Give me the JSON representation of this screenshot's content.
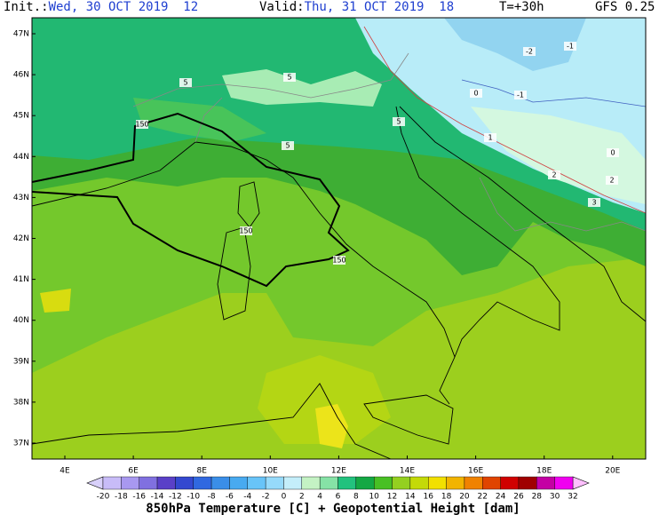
{
  "header": {
    "init_label": "Init.:",
    "init": "Wed, 30 OCT 2019  12",
    "valid_label": "Valid:",
    "valid": "Thu, 31 OCT 2019  18",
    "lead": "T=+30h",
    "model": "GFS 0.25"
  },
  "map": {
    "lat_labels": [
      "47N",
      "46N",
      "45N",
      "44N",
      "43N",
      "42N",
      "41N",
      "40N",
      "39N",
      "38N",
      "37N"
    ],
    "lon_labels": [
      "4E",
      "6E",
      "8E",
      "10E",
      "12E",
      "14E",
      "16E",
      "18E",
      "20E"
    ],
    "contour_labels": [
      "150",
      "150",
      "150",
      "5",
      "5",
      "5",
      "5",
      "-2",
      "-1",
      "-1",
      "0",
      "0",
      "1",
      "2",
      "2",
      "3"
    ]
  },
  "colorbar": {
    "labels": [
      -20,
      -18,
      -16,
      -14,
      -12,
      -10,
      -8,
      -6,
      -4,
      -2,
      0,
      2,
      4,
      6,
      8,
      10,
      12,
      14,
      16,
      18,
      20,
      22,
      24,
      26,
      28,
      30,
      32
    ],
    "colors": [
      "#c8bcf8",
      "#a898f0",
      "#8070e0",
      "#5a40c8",
      "#3448d0",
      "#3068e0",
      "#3a8ee8",
      "#48aaf0",
      "#68c4f8",
      "#96dafa",
      "#c4eefa",
      "#c4f2c4",
      "#86e2a6",
      "#22c27e",
      "#14a844",
      "#48c024",
      "#94d020",
      "#c4da08",
      "#f2e000",
      "#f2b400",
      "#f08200",
      "#e04400",
      "#d00000",
      "#a00000",
      "#c400a4",
      "#f000f0"
    ],
    "low_color": "#d8d0fa",
    "high_color": "#ffc0ff",
    "caption": "850hPa Temperature [C] + Geopotential Height [dam]"
  }
}
